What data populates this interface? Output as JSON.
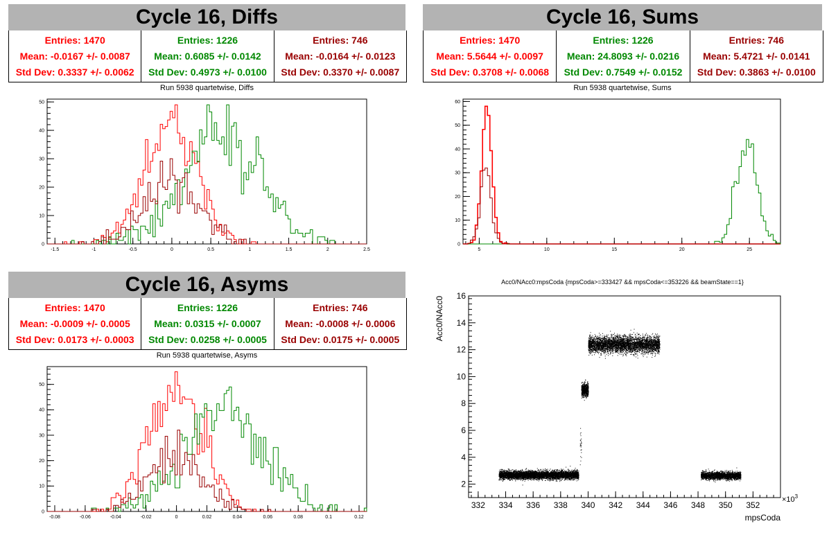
{
  "colors": {
    "red": "#ff0000",
    "green": "#008800",
    "darkred": "#990000",
    "title_bg": "#b3b3b3"
  },
  "panels": {
    "diffs": {
      "title": "Cycle 16, Diffs",
      "subtitle": "Run 5938 quartetwise, Diffs",
      "stats": [
        {
          "entries": "Entries: 1470",
          "mean": "Mean: -0.0167 +/- 0.0087",
          "std": "Std Dev: 0.3337 +/- 0.0062"
        },
        {
          "entries": "Entries: 1226",
          "mean": "Mean: 0.6085 +/- 0.0142",
          "std": "Std Dev: 0.4973 +/- 0.0100"
        },
        {
          "entries": "Entries: 746",
          "mean": "Mean: -0.0164 +/- 0.0123",
          "std": "Std Dev: 0.3370 +/- 0.0087"
        }
      ]
    },
    "sums": {
      "title": "Cycle 16, Sums",
      "subtitle": "Run 5938 quartetwise, Sums",
      "stats": [
        {
          "entries": "Entries: 1470",
          "mean": "Mean: 5.5644 +/- 0.0097",
          "std": "Std Dev: 0.3708 +/- 0.0068"
        },
        {
          "entries": "Entries: 1226",
          "mean": "Mean: 24.8093 +/- 0.0216",
          "std": "Std Dev: 0.7549 +/- 0.0152"
        },
        {
          "entries": "Entries: 746",
          "mean": "Mean: 5.4721 +/- 0.0141",
          "std": "Std Dev: 0.3863 +/- 0.0100"
        }
      ]
    },
    "asyms": {
      "title": "Cycle 16, Asyms",
      "subtitle": "Run 5938 quartetwise, Asyms",
      "stats": [
        {
          "entries": "Entries: 1470",
          "mean": "Mean: -0.0009 +/- 0.0005",
          "std": "Std Dev: 0.0173 +/- 0.0003"
        },
        {
          "entries": "Entries: 1226",
          "mean": "Mean: 0.0315 +/- 0.0007",
          "std": "Std Dev: 0.0258 +/- 0.0005"
        },
        {
          "entries": "Entries: 746",
          "mean": "Mean: -0.0008 +/- 0.0006",
          "std": "Std Dev: 0.0175 +/- 0.0005"
        }
      ]
    },
    "scatter": {
      "title": "Acc0/NAcc0:mpsCoda {mpsCoda>=333427 && mpsCoda<=353226 && beamState==1}",
      "xlabel": "mpsCoda",
      "ylabel": "Acc0/NAcc0",
      "xexp": "×10",
      "xexp_sup": "3"
    }
  },
  "chart_data": [
    {
      "type": "histogram",
      "name": "diffs",
      "xlim": [
        -1.6,
        2.5
      ],
      "ylim": [
        0,
        51
      ],
      "xticks": [
        -1.5,
        -1,
        -0.5,
        0,
        0.5,
        1,
        1.5,
        2,
        2.5
      ],
      "yticks": [
        0,
        10,
        20,
        30,
        40,
        50
      ],
      "series": [
        {
          "color": "#ff0000",
          "entries": 1470,
          "mean": -0.0167,
          "std": 0.3337,
          "peak": 49
        },
        {
          "color": "#008800",
          "entries": 1226,
          "mean": 0.6085,
          "std": 0.4973,
          "peak": 49
        },
        {
          "color": "#990000",
          "entries": 746,
          "mean": -0.0164,
          "std": 0.337,
          "peak": 30
        }
      ]
    },
    {
      "type": "histogram",
      "name": "sums",
      "xlim": [
        3.8,
        27.3
      ],
      "ylim": [
        0,
        61
      ],
      "xticks": [
        5,
        10,
        15,
        20,
        25
      ],
      "yticks": [
        0,
        10,
        20,
        30,
        40,
        50,
        60
      ],
      "series": [
        {
          "color": "#ff0000",
          "entries": 1470,
          "mean": 5.5644,
          "std": 0.3708,
          "peak": 58
        },
        {
          "color": "#008800",
          "entries": 1226,
          "mean": 24.8093,
          "std": 0.7549,
          "peak": 44
        },
        {
          "color": "#990000",
          "entries": 746,
          "mean": 5.4721,
          "std": 0.3863,
          "peak": 32
        }
      ]
    },
    {
      "type": "histogram",
      "name": "asyms",
      "xlim": [
        -0.085,
        0.125
      ],
      "ylim": [
        0,
        57
      ],
      "xticks": [
        -0.08,
        -0.06,
        -0.04,
        -0.02,
        0,
        0.02,
        0.04,
        0.06,
        0.08,
        0.1,
        0.12
      ],
      "yticks": [
        0,
        10,
        20,
        30,
        40,
        50
      ],
      "series": [
        {
          "color": "#ff0000",
          "entries": 1470,
          "mean": -0.0009,
          "std": 0.0173,
          "peak": 55
        },
        {
          "color": "#008800",
          "entries": 1226,
          "mean": 0.0315,
          "std": 0.0258,
          "peak": 49
        },
        {
          "color": "#990000",
          "entries": 746,
          "mean": -0.0008,
          "std": 0.0175,
          "peak": 32
        }
      ]
    },
    {
      "type": "scatter",
      "name": "scatter",
      "xlim": [
        331.3,
        354
      ],
      "ylim": [
        1,
        16
      ],
      "xticks": [
        332,
        334,
        336,
        338,
        340,
        342,
        344,
        346,
        348,
        350,
        352
      ],
      "yticks": [
        2,
        4,
        6,
        8,
        10,
        12,
        14,
        16
      ],
      "clusters": [
        {
          "x": [
            333.5,
            339.3
          ],
          "y": 2.7,
          "spread": 0.28,
          "n": 5000
        },
        {
          "x": [
            339.4,
            339.5
          ],
          "y": 4.9,
          "spread": 1.2,
          "n": 25
        },
        {
          "x": [
            339.5,
            340.0
          ],
          "y": 9.0,
          "spread": 0.45,
          "n": 700
        },
        {
          "x": [
            340.0,
            345.2
          ],
          "y": 12.4,
          "spread": 0.55,
          "n": 4200
        },
        {
          "x": [
            348.2,
            351.1
          ],
          "y": 2.65,
          "spread": 0.25,
          "n": 2300
        }
      ]
    }
  ]
}
